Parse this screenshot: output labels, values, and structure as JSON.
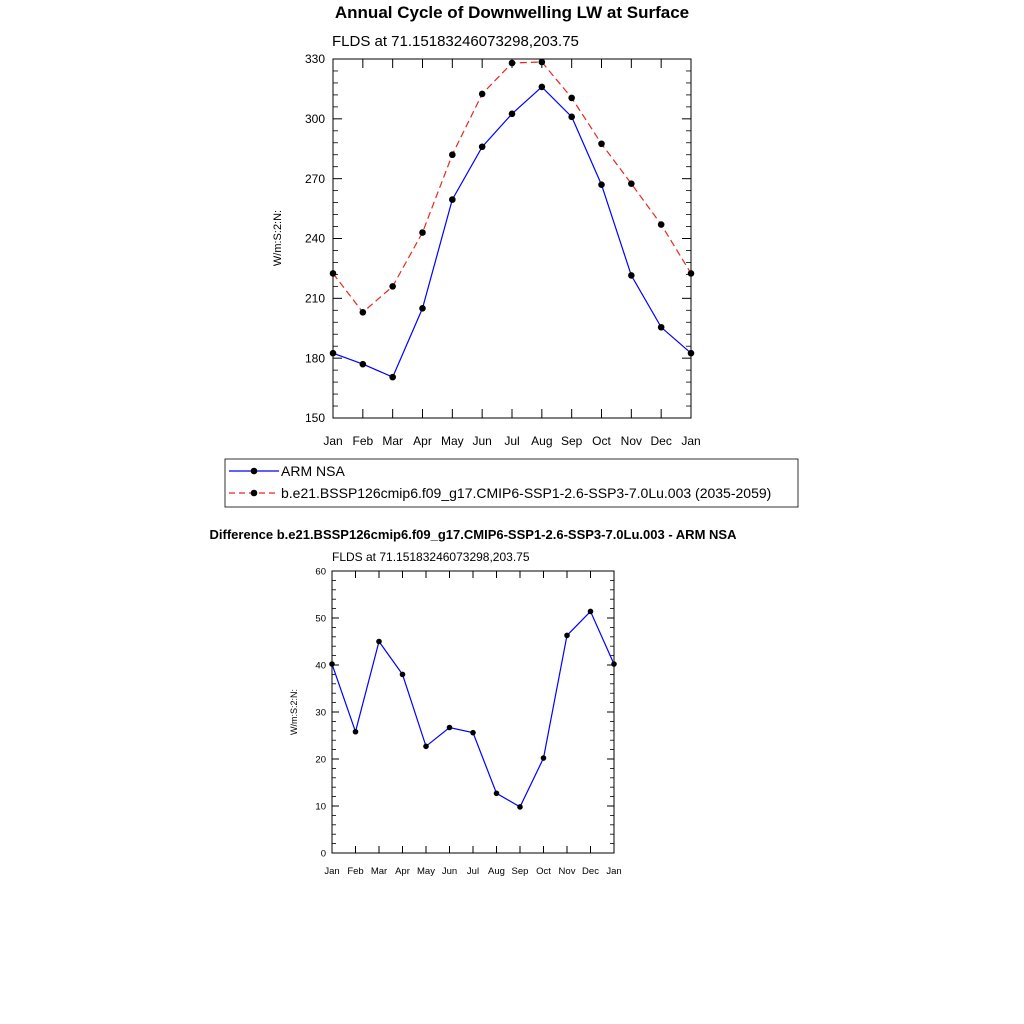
{
  "chart_data": [
    {
      "type": "line",
      "title": "Annual Cycle of Downwelling LW at Surface",
      "subtitle": "FLDS at 71.15183246073298,203.75",
      "ylabel": "W/m:S:2:N:",
      "xlabel": "",
      "categories": [
        "Jan",
        "Feb",
        "Mar",
        "Apr",
        "May",
        "Jun",
        "Jul",
        "Aug",
        "Sep",
        "Oct",
        "Nov",
        "Dec",
        "Jan"
      ],
      "ylim": [
        150,
        330
      ],
      "yticks": [
        150,
        180,
        210,
        240,
        270,
        300,
        330
      ],
      "grid": false,
      "legend_placement": "below",
      "series": [
        {
          "name": "ARM NSA",
          "color": "#0000ff",
          "dash": "solid",
          "values": [
            182.5,
            177,
            170.5,
            205,
            259.5,
            286,
            302.5,
            316,
            301,
            267,
            221.5,
            195.5,
            182.5
          ]
        },
        {
          "name": "b.e21.BSSP126cmip6.f09_g17.CMIP6-SSP1-2.6-SSP3-7.0Lu.003 (2035-2059)",
          "color": "#e8281e",
          "dash": "dashed",
          "values": [
            222.5,
            203,
            216,
            243,
            282,
            312.5,
            328,
            328.5,
            310.5,
            287.5,
            267.5,
            247,
            222.5
          ]
        }
      ]
    },
    {
      "type": "line",
      "title": "Difference b.e21.BSSP126cmip6.f09_g17.CMIP6-SSP1-2.6-SSP3-7.0Lu.003 - ARM NSA",
      "subtitle": "FLDS at 71.15183246073298,203.75",
      "ylabel": "W/m:S:2:N:",
      "xlabel": "",
      "categories": [
        "Jan",
        "Feb",
        "Mar",
        "Apr",
        "May",
        "Jun",
        "Jul",
        "Aug",
        "Sep",
        "Oct",
        "Nov",
        "Dec",
        "Jan"
      ],
      "ylim": [
        0,
        60
      ],
      "yticks": [
        0,
        10,
        20,
        30,
        40,
        50,
        60
      ],
      "grid": false,
      "series": [
        {
          "color": "#0000ff",
          "dash": "solid",
          "values": [
            40.2,
            25.8,
            45,
            38,
            22.7,
            26.7,
            25.6,
            12.7,
            9.8,
            20.2,
            46.3,
            51.4,
            40.2
          ]
        }
      ]
    }
  ]
}
